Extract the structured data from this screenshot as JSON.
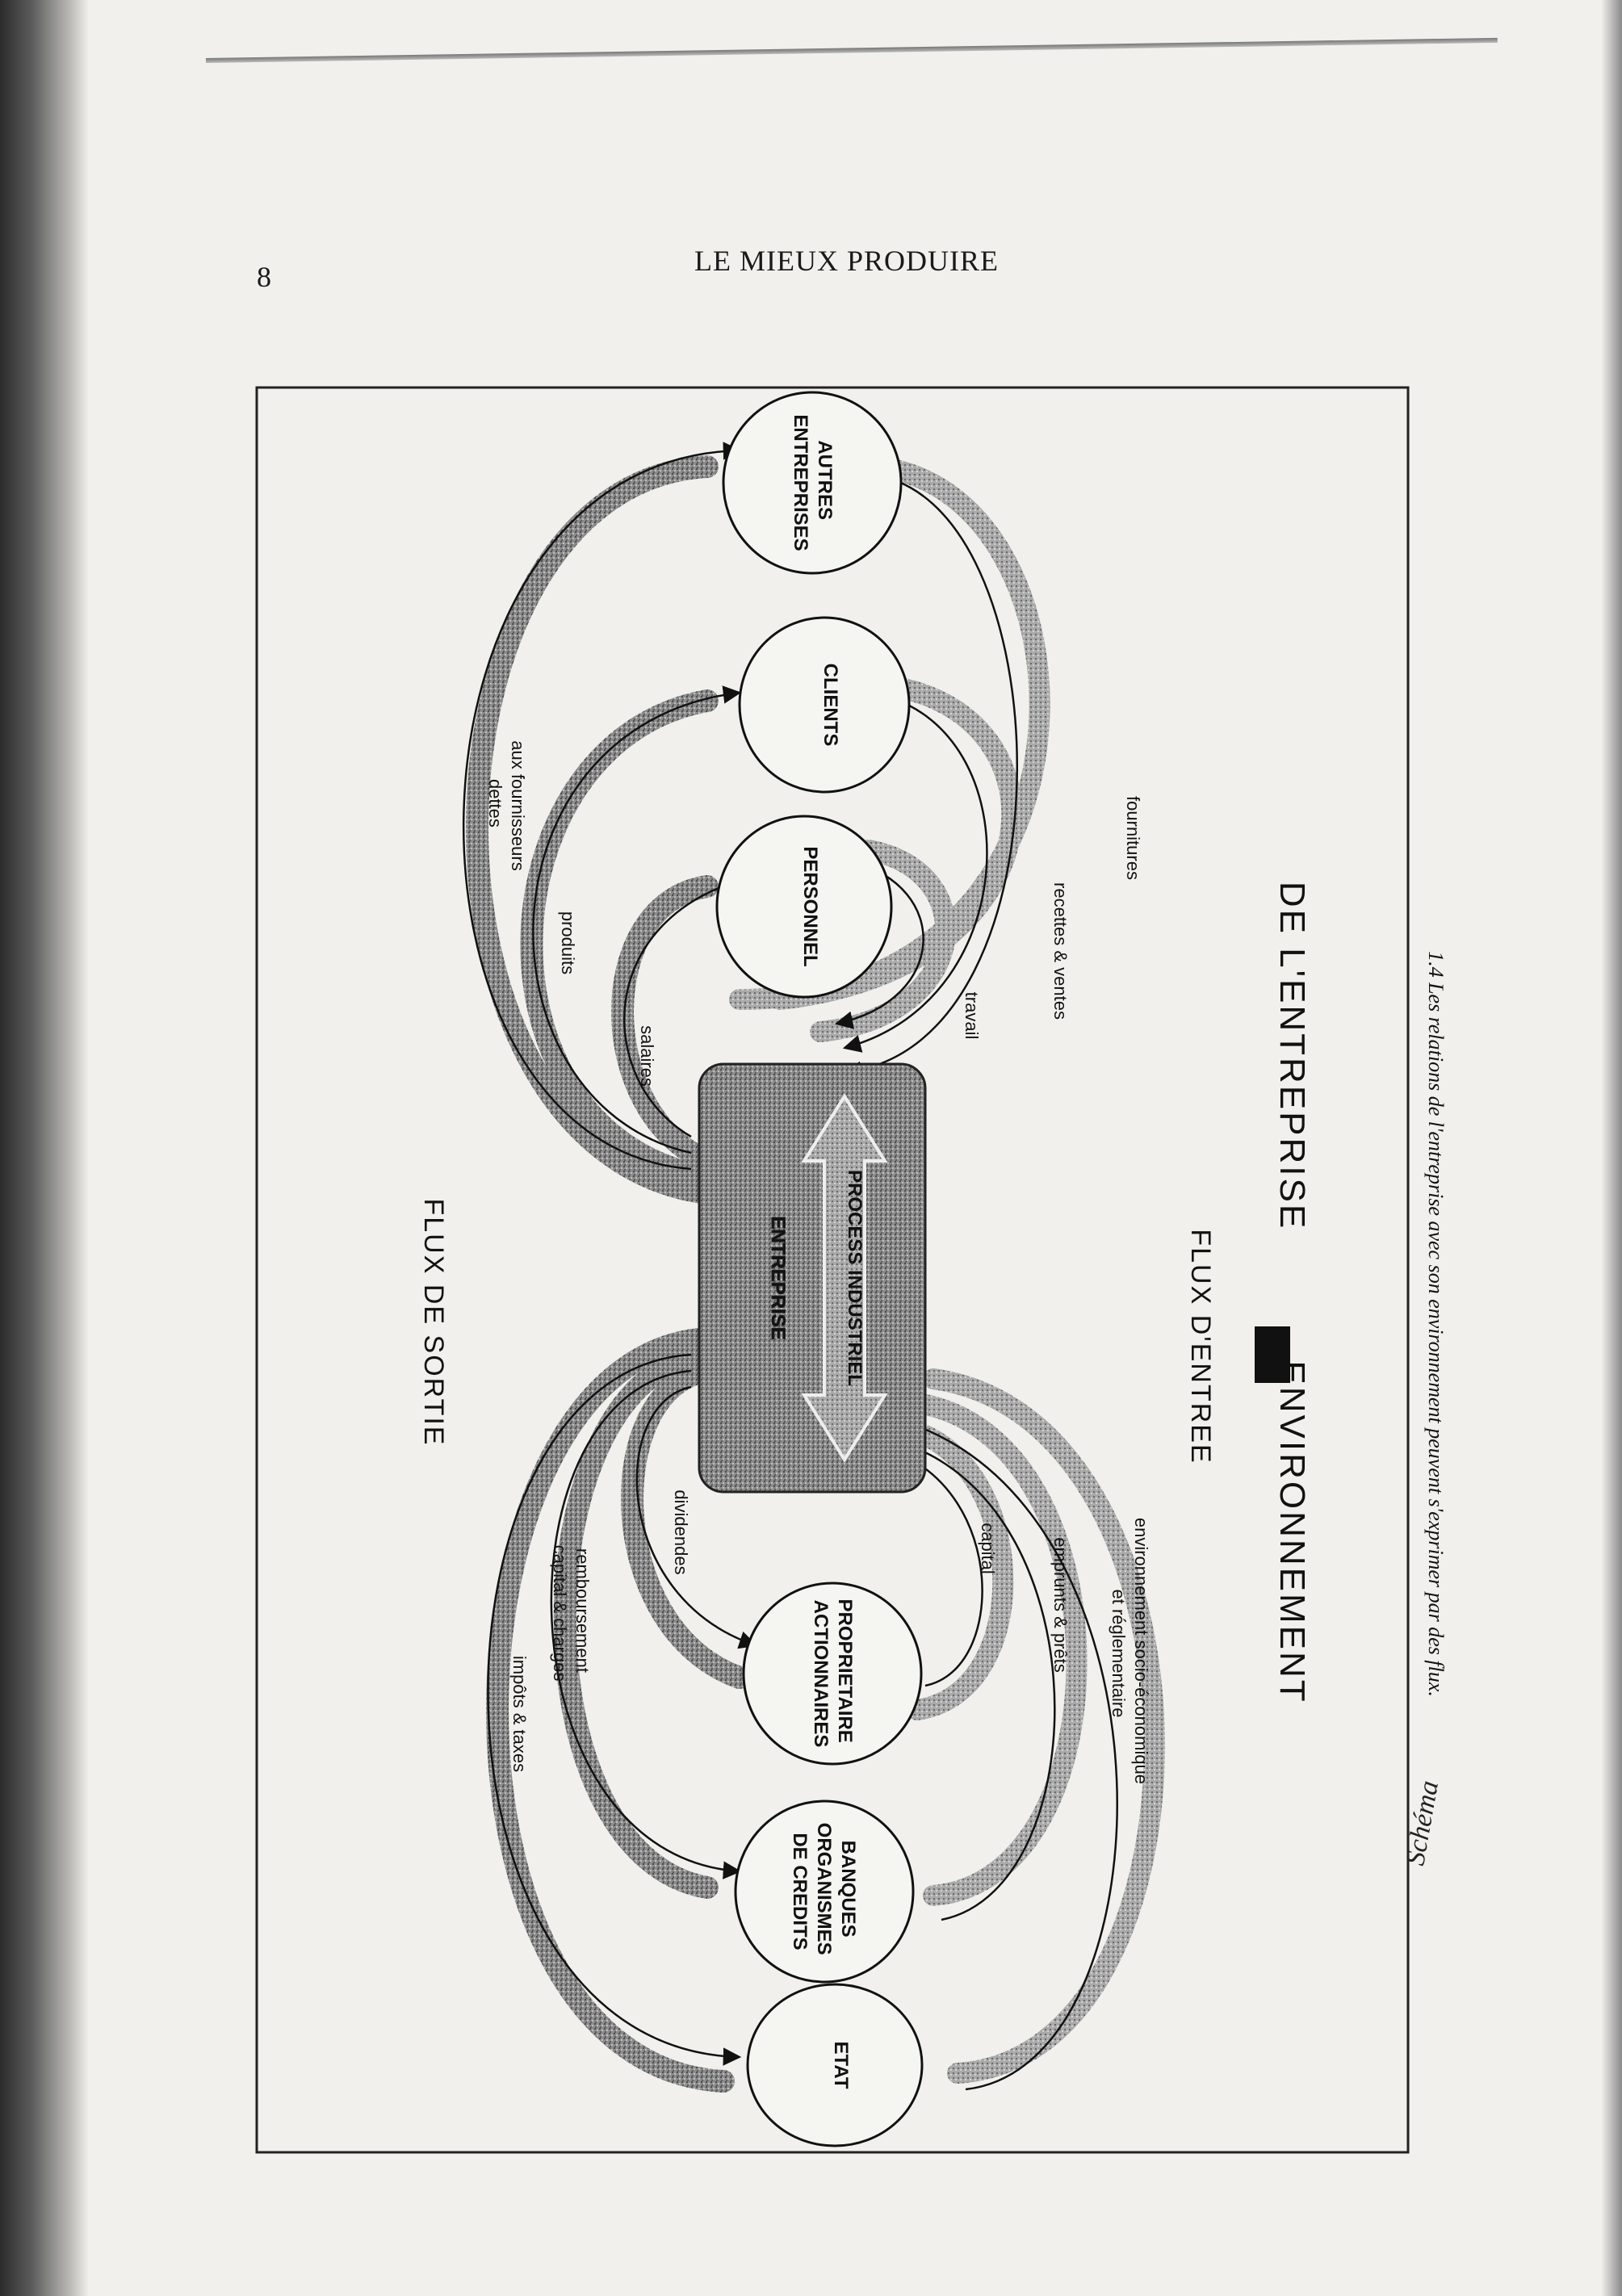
{
  "page": {
    "page_number": "8",
    "running_head": "LE MIEUX PRODUIRE"
  },
  "diagram": {
    "center": {
      "title": "ENTREPRISE",
      "inner": "PROCESS INDUSTRIEL"
    },
    "section_labels": {
      "output": "FLUX DE SORTIE",
      "input": "FLUX D'ENTREE"
    },
    "title_left": "ENVIRONNEMENT",
    "title_right": "DE L'ENTREPRISE",
    "nodes": {
      "autres_entreprises": [
        "AUTRES",
        "ENTREPRISES"
      ],
      "clients": [
        "CLIENTS"
      ],
      "personnel": [
        "PERSONNEL"
      ],
      "proprietaire": [
        "PROPRIETAIRE",
        "ACTIONNAIRES"
      ],
      "banques": [
        "BANQUES",
        "ORGANISMES",
        "DE CREDITS"
      ],
      "etat": [
        "ETAT"
      ]
    },
    "flows": {
      "dettes": [
        "dettes",
        "aux fournisseurs"
      ],
      "produits": "produits",
      "salaires": "salaires",
      "travail": "travail",
      "recettes": "recettes & ventes",
      "fournitures": "fournitures",
      "impots": "impôts & taxes",
      "remboursement": [
        "remboursement",
        "capital & charges"
      ],
      "dividendes": "dividendes",
      "capital": "capital",
      "emprunts": "emprunts & prêts",
      "environnement": [
        "environnement socio-économique",
        "et réglementaire"
      ]
    },
    "caption": "1.4  Les relations de l'entreprise avec son environnement peuvent s'exprimer par des flux.",
    "handwritten_note": "Schéma"
  }
}
